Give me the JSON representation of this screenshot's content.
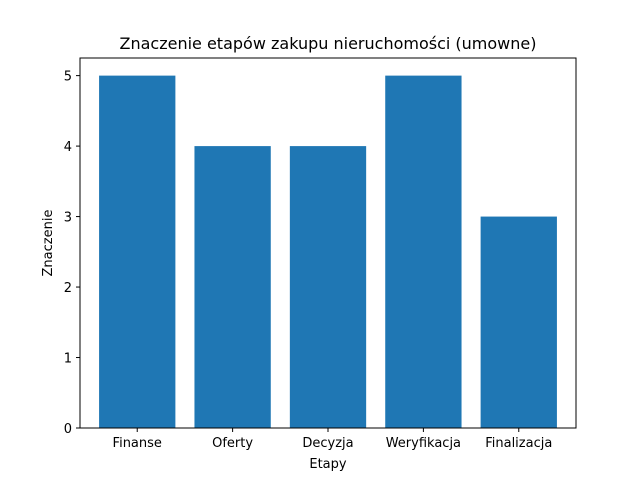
{
  "chart_data": {
    "type": "bar",
    "title": "Znaczenie etapów zakupu nieruchomości (umowne)",
    "xlabel": "Etapy",
    "ylabel": "Znaczenie",
    "categories": [
      "Finanse",
      "Oferty",
      "Decyzja",
      "Weryfikacja",
      "Finalizacja"
    ],
    "values": [
      5,
      4,
      4,
      5,
      3
    ],
    "ylim": [
      0,
      5.25
    ],
    "yticks": [
      0,
      1,
      2,
      3,
      4,
      5
    ],
    "grid": false,
    "bar_color": "#1f77b4"
  }
}
